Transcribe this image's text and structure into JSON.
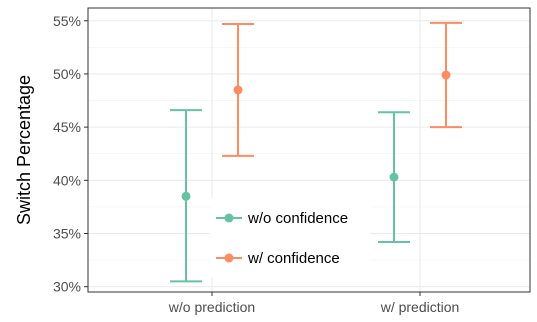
{
  "chart_data": {
    "type": "scatter",
    "title": "",
    "xlabel": "",
    "ylabel": "Switch Percentage",
    "categories": [
      "w/o prediction",
      "w/ prediction"
    ],
    "ylim": [
      29.5,
      56.2
    ],
    "yticks": [
      "30%",
      "35%",
      "40%",
      "45%",
      "50%",
      "55%"
    ],
    "ytick_values": [
      30,
      35,
      40,
      45,
      50,
      55
    ],
    "grid": true,
    "legend_position": "bottom-left inside plot",
    "error_bars": true,
    "series": [
      {
        "name": "w/o confidence",
        "color": "#66c2a5",
        "values": [
          38.5,
          40.3
        ],
        "lower": [
          30.5,
          34.2
        ],
        "upper": [
          46.6,
          46.4
        ]
      },
      {
        "name": "w/ confidence",
        "color": "#fc8d62",
        "values": [
          48.5,
          49.9
        ],
        "lower": [
          42.3,
          45.0
        ],
        "upper": [
          54.7,
          54.8
        ]
      }
    ]
  }
}
